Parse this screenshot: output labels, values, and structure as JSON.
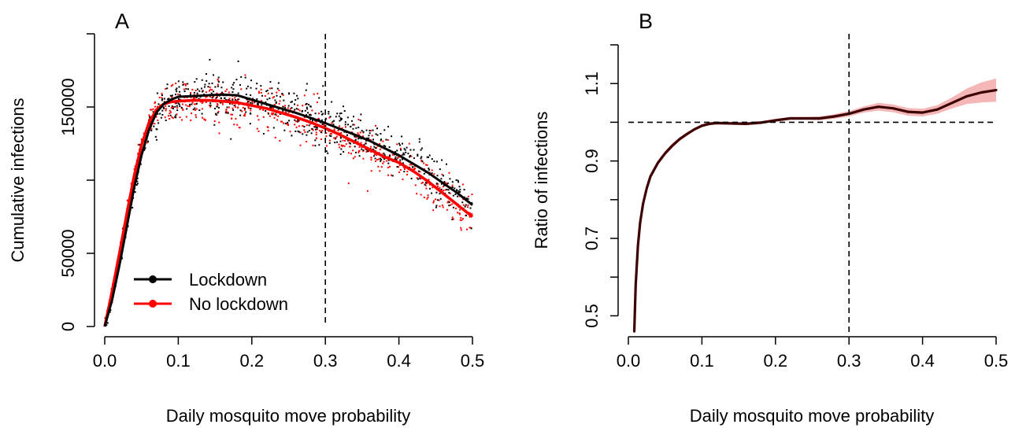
{
  "chart_data": [
    {
      "panel": "A",
      "type": "scatter",
      "xlabel": "Daily mosquito move probability",
      "ylabel": "Cumulative infections",
      "xlim": [
        0,
        0.5
      ],
      "ylim": [
        0,
        200000
      ],
      "xticks": [
        0,
        0.1,
        0.2,
        0.3,
        0.4,
        0.5
      ],
      "xtick_labels": [
        "0.0",
        "0.1",
        "0.2",
        "0.3",
        "0.4",
        "0.5"
      ],
      "yticks": [
        0,
        50000,
        100000,
        150000,
        200000
      ],
      "ytick_labels": [
        "0",
        "50000",
        "",
        "150000",
        ""
      ],
      "vline": 0.3,
      "legend": {
        "position": "bottom-left",
        "entries": [
          {
            "label": "Lockdown",
            "color": "#000000"
          },
          {
            "label": "No lockdown",
            "color": "#ff0000"
          }
        ]
      },
      "series": [
        {
          "name": "Lockdown",
          "color": "#000000",
          "smooth": {
            "x": [
              0,
              0.01,
              0.02,
              0.03,
              0.04,
              0.05,
              0.06,
              0.07,
              0.08,
              0.09,
              0.1,
              0.12,
              0.14,
              0.16,
              0.18,
              0.2,
              0.22,
              0.24,
              0.26,
              0.28,
              0.3,
              0.32,
              0.34,
              0.36,
              0.38,
              0.4,
              0.42,
              0.44,
              0.46,
              0.48,
              0.5
            ],
            "y": [
              0,
              18000,
              42000,
              68000,
              95000,
              117000,
              134000,
              146000,
              152000,
              155000,
              157000,
              157500,
              158000,
              158500,
              158000,
              155000,
              152000,
              149000,
              146000,
              142500,
              139000,
              135000,
              131000,
              127000,
              122000,
              117000,
              111000,
              105000,
              98000,
              91000,
              83000
            ]
          },
          "points": {
            "spread": 6500,
            "n": 650
          }
        },
        {
          "name": "No lockdown",
          "color": "#ff0000",
          "smooth": {
            "x": [
              0,
              0.01,
              0.02,
              0.03,
              0.04,
              0.05,
              0.06,
              0.07,
              0.08,
              0.09,
              0.1,
              0.12,
              0.14,
              0.16,
              0.18,
              0.2,
              0.22,
              0.24,
              0.26,
              0.28,
              0.3,
              0.32,
              0.34,
              0.36,
              0.38,
              0.4,
              0.42,
              0.44,
              0.46,
              0.48,
              0.5
            ],
            "y": [
              0,
              24000,
              50000,
              77000,
              103000,
              124000,
              139000,
              148000,
              152000,
              153500,
              154000,
              154500,
              154500,
              154000,
              153000,
              151000,
              149000,
              146000,
              143000,
              139500,
              135500,
              131000,
              126000,
              121000,
              116000,
              112000,
              106000,
              99000,
              91000,
              83000,
              75000
            ]
          },
          "points": {
            "spread": 6000,
            "n": 650
          }
        }
      ]
    },
    {
      "panel": "B",
      "type": "line",
      "xlabel": "Daily mosquito move probability",
      "ylabel": "Ratio of infections",
      "xlim": [
        0,
        0.5
      ],
      "ylim": [
        0.45,
        1.2
      ],
      "xticks": [
        0,
        0.1,
        0.2,
        0.3,
        0.4,
        0.5
      ],
      "xtick_labels": [
        "0.0",
        "0.1",
        "0.2",
        "0.3",
        "0.4",
        "0.5"
      ],
      "yticks": [
        0.5,
        0.6,
        0.7,
        0.8,
        0.9,
        1.0,
        1.1,
        1.2
      ],
      "ytick_labels": [
        "0.5",
        "",
        "0.7",
        "",
        "0.9",
        "",
        "1.1",
        ""
      ],
      "vline": 0.3,
      "hline": 1.0,
      "series": [
        {
          "name": "",
          "color": "#3d0000",
          "band_color": "#f4b6b6",
          "x": [
            0.008,
            0.01,
            0.013,
            0.016,
            0.02,
            0.025,
            0.03,
            0.04,
            0.05,
            0.06,
            0.07,
            0.08,
            0.09,
            0.1,
            0.11,
            0.12,
            0.14,
            0.16,
            0.18,
            0.2,
            0.22,
            0.24,
            0.26,
            0.28,
            0.3,
            0.32,
            0.34,
            0.36,
            0.38,
            0.4,
            0.42,
            0.44,
            0.46,
            0.48,
            0.5
          ],
          "y": [
            0.46,
            0.58,
            0.68,
            0.74,
            0.79,
            0.83,
            0.86,
            0.895,
            0.92,
            0.94,
            0.957,
            0.97,
            0.982,
            0.991,
            0.996,
            0.998,
            0.997,
            0.996,
            0.999,
            1.005,
            1.01,
            1.01,
            1.01,
            1.015,
            1.022,
            1.033,
            1.04,
            1.036,
            1.027,
            1.025,
            1.033,
            1.05,
            1.067,
            1.077,
            1.083
          ],
          "band_halfwidth": [
            0.006,
            0.006,
            0.006,
            0.006,
            0.006,
            0.006,
            0.006,
            0.006,
            0.006,
            0.006,
            0.005,
            0.005,
            0.004,
            0.004,
            0.004,
            0.004,
            0.004,
            0.004,
            0.004,
            0.004,
            0.004,
            0.004,
            0.005,
            0.006,
            0.007,
            0.008,
            0.01,
            0.01,
            0.01,
            0.01,
            0.011,
            0.014,
            0.02,
            0.026,
            0.03
          ]
        }
      ]
    }
  ]
}
